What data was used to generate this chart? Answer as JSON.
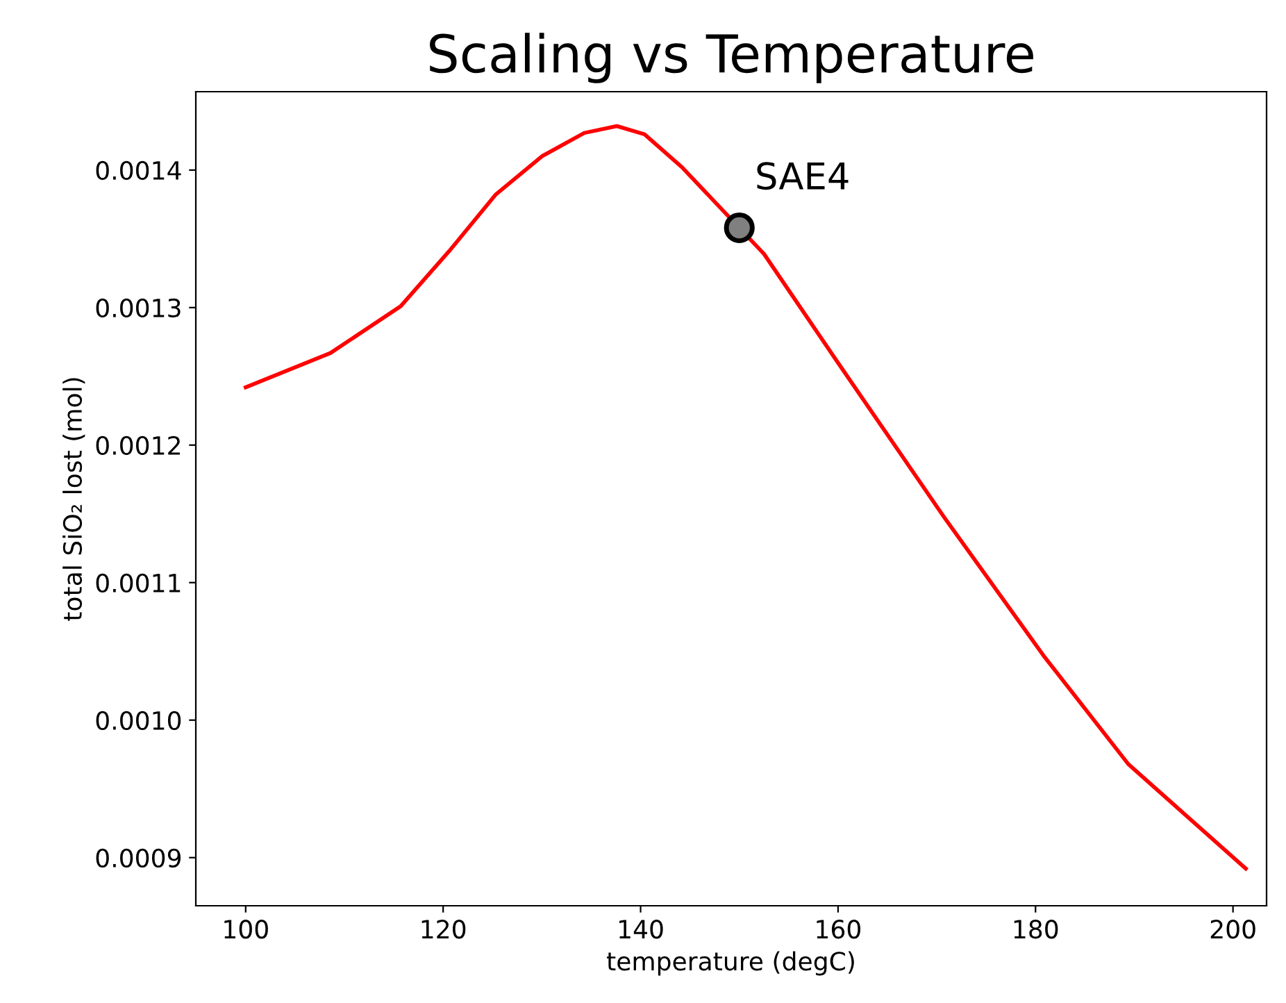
{
  "chart_data": {
    "type": "line",
    "title": "Scaling vs Temperature",
    "xlabel": "temperature (degC)",
    "ylabel": "total SiO₂ lost (mol)",
    "series": [
      {
        "color": "#ff0000",
        "x": [
          100,
          108.6,
          115.7,
          120.6,
          125.3,
          130.0,
          134.3,
          137.6,
          140.4,
          144.2,
          152.5,
          159.6,
          170.7,
          180.8,
          189.4,
          201.3
        ],
        "values": [
          0.001242,
          0.001267,
          0.001301,
          0.001341,
          0.001382,
          0.00141,
          0.001427,
          0.001432,
          0.001426,
          0.001402,
          0.001339,
          0.001264,
          0.001148,
          0.001047,
          0.000968,
          0.000892
        ]
      },
      {
        "type": "scatter",
        "color": "#808080",
        "x": [
          150
        ],
        "values": [
          0.001358
        ],
        "marker": "circle"
      }
    ],
    "annotations": [
      {
        "text": "SAE4",
        "x": 150,
        "y": 0.001358
      }
    ],
    "xlim": [
      94.95,
      203.4
    ],
    "ylim": [
      0.000865,
      0.001457
    ],
    "xticks": [
      100,
      120,
      140,
      160,
      180,
      200
    ],
    "yticks": [
      {
        "value": 0.0009,
        "label": "0.0009"
      },
      {
        "value": 0.001,
        "label": "0.0010"
      },
      {
        "value": 0.0011,
        "label": "0.0011"
      },
      {
        "value": 0.0012,
        "label": "0.0012"
      },
      {
        "value": 0.0013,
        "label": "0.0013"
      },
      {
        "value": 0.0014,
        "label": "0.0014"
      }
    ],
    "grid": false
  }
}
